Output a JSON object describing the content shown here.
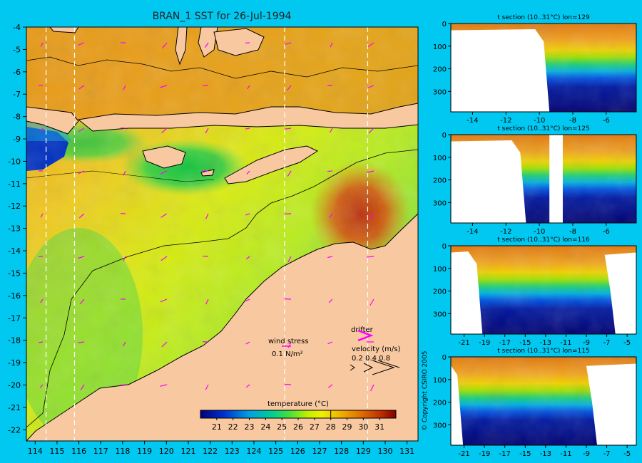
{
  "colors": {
    "background": "#00c8f0",
    "land": "#f8c8a0",
    "frame": "#000000",
    "drifter": "#ff00ff"
  },
  "chart_data": [
    {
      "type": "heatmap",
      "title": "BRAN_1 SST for 26-Jul-1994",
      "xlim": [
        113.6,
        131.5
      ],
      "ylim": [
        -22.5,
        -4
      ],
      "x_ticks": [
        "114",
        "115",
        "116",
        "117",
        "118",
        "119",
        "120",
        "121",
        "122",
        "123",
        "124",
        "125",
        "126",
        "127",
        "128",
        "129",
        "130",
        "131"
      ],
      "y_ticks": [
        "-4",
        "-5",
        "-6",
        "-7",
        "-8",
        "-9",
        "-10",
        "-11",
        "-12",
        "-13",
        "-14",
        "-15",
        "-16",
        "-17",
        "-18",
        "-19",
        "-20",
        "-21",
        "-22"
      ],
      "section_lines_lon": [
        114.5,
        115.8,
        125.4,
        129.2
      ],
      "grid": false,
      "colorbar": {
        "label": "temperature (°C)",
        "min": 20,
        "max": 32,
        "ticks": [
          "21",
          "22",
          "23",
          "24",
          "25",
          "26",
          "27",
          "28",
          "29",
          "30",
          "31"
        ],
        "marker_value": 28
      },
      "legend": {
        "wind_label": "wind stress",
        "wind_scale": "0.1 N/m²",
        "drifter_label": "drifter",
        "velocity_label": "velocity (m/s)",
        "velocity_values": "0.2 0.4 0.8"
      }
    },
    {
      "type": "heatmap",
      "title": "t section (10..31°C) lon=129",
      "x_ticks": [
        "-14",
        "-12",
        "-10",
        "-8",
        "-6"
      ],
      "xlim": [
        -15.3,
        -4.2
      ],
      "y_ticks": [
        "0",
        "100",
        "200",
        "300"
      ],
      "ylim": [
        0,
        390
      ]
    },
    {
      "type": "heatmap",
      "title": "t section (10..31°C) lon=125",
      "x_ticks": [
        "-14",
        "-12",
        "-10",
        "-8",
        "-6"
      ],
      "xlim": [
        -15.3,
        -4.2
      ],
      "y_ticks": [
        "0",
        "100",
        "200",
        "300"
      ],
      "ylim": [
        0,
        390
      ]
    },
    {
      "type": "heatmap",
      "title": "t section (10..31°C) lon=116",
      "x_ticks": [
        "-21",
        "-19",
        "-17",
        "-15",
        "-13",
        "-11",
        "-9",
        "-7",
        "-5"
      ],
      "xlim": [
        -22.3,
        -4.1
      ],
      "y_ticks": [
        "0",
        "100",
        "200",
        "300"
      ],
      "ylim": [
        0,
        390
      ]
    },
    {
      "type": "heatmap",
      "title": "t section (10..31°C) lon=115",
      "x_ticks": [
        "-21",
        "-19",
        "-17",
        "-15",
        "-13",
        "-11",
        "-9",
        "-7",
        "-5"
      ],
      "xlim": [
        -22.3,
        -4.1
      ],
      "y_ticks": [
        "0",
        "100",
        "200",
        "300"
      ],
      "ylim": [
        0,
        390
      ]
    }
  ],
  "copyright": "© Copyright CSIRO 2005"
}
